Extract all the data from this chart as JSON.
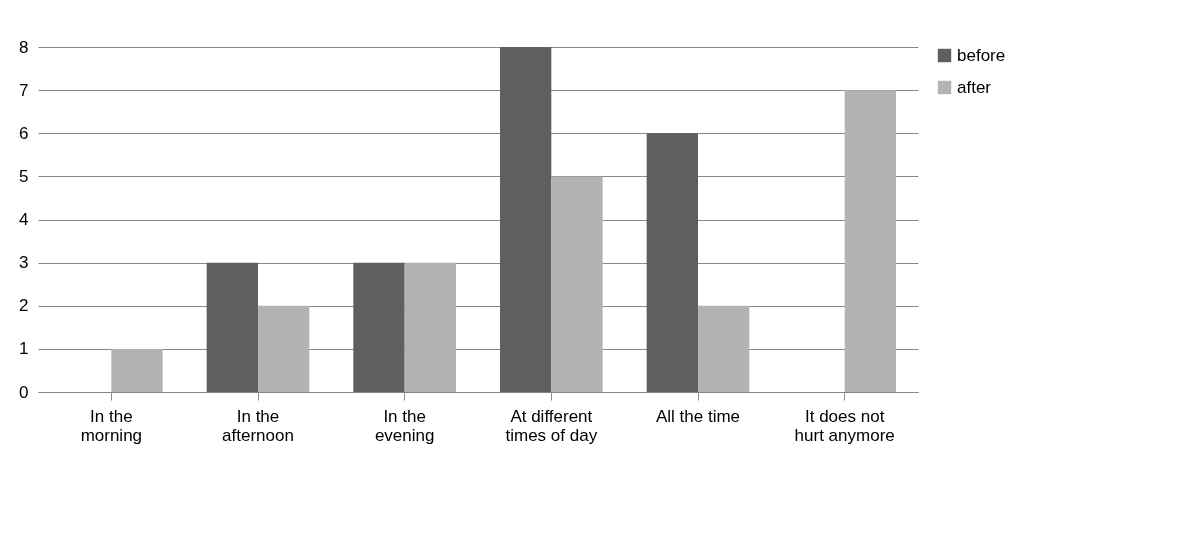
{
  "chart_data": {
    "type": "bar",
    "categories": [
      "In the morning",
      "In the afternoon",
      "In the evening",
      "At different times of day",
      "All the time",
      "It does not hurt anymore"
    ],
    "series": [
      {
        "name": "before",
        "color": "#5f5f5f",
        "values": [
          0,
          3,
          3,
          8,
          6,
          0
        ]
      },
      {
        "name": "after",
        "color": "#b3b3b3",
        "values": [
          1,
          2,
          3,
          5,
          2,
          7
        ]
      }
    ],
    "ylim": [
      0,
      8
    ],
    "yticks": [
      0,
      1,
      2,
      3,
      4,
      5,
      6,
      7,
      8
    ],
    "grid": "y",
    "legend": "right"
  }
}
